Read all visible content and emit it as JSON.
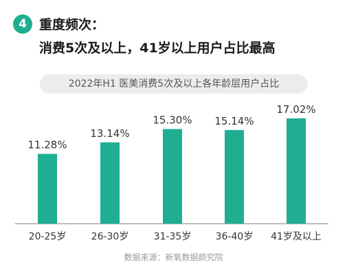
{
  "header": {
    "badge_number": "4",
    "line1": "重度频次：",
    "line2": "消费5次及以上，41岁以上用户占比最高"
  },
  "chart_data": {
    "type": "bar",
    "title": "2022年H1 医美消费5次及以上各年龄层用户占比",
    "categories": [
      "20-25岁",
      "26-30岁",
      "31-35岁",
      "36-40岁",
      "41岁及以上"
    ],
    "values": [
      11.28,
      13.14,
      15.3,
      15.14,
      17.02
    ],
    "value_labels": [
      "11.28%",
      "13.14%",
      "15.30%",
      "15.14%",
      "17.02%"
    ],
    "unit": "%",
    "bar_color": "#1fae91",
    "ylim": [
      0,
      17.02
    ],
    "grid": false,
    "legend": "none"
  },
  "footer": {
    "source": "数据来源：新氧数据颜究院"
  },
  "colors": {
    "accent": "#1fae91",
    "pill_bg": "#ececec"
  }
}
